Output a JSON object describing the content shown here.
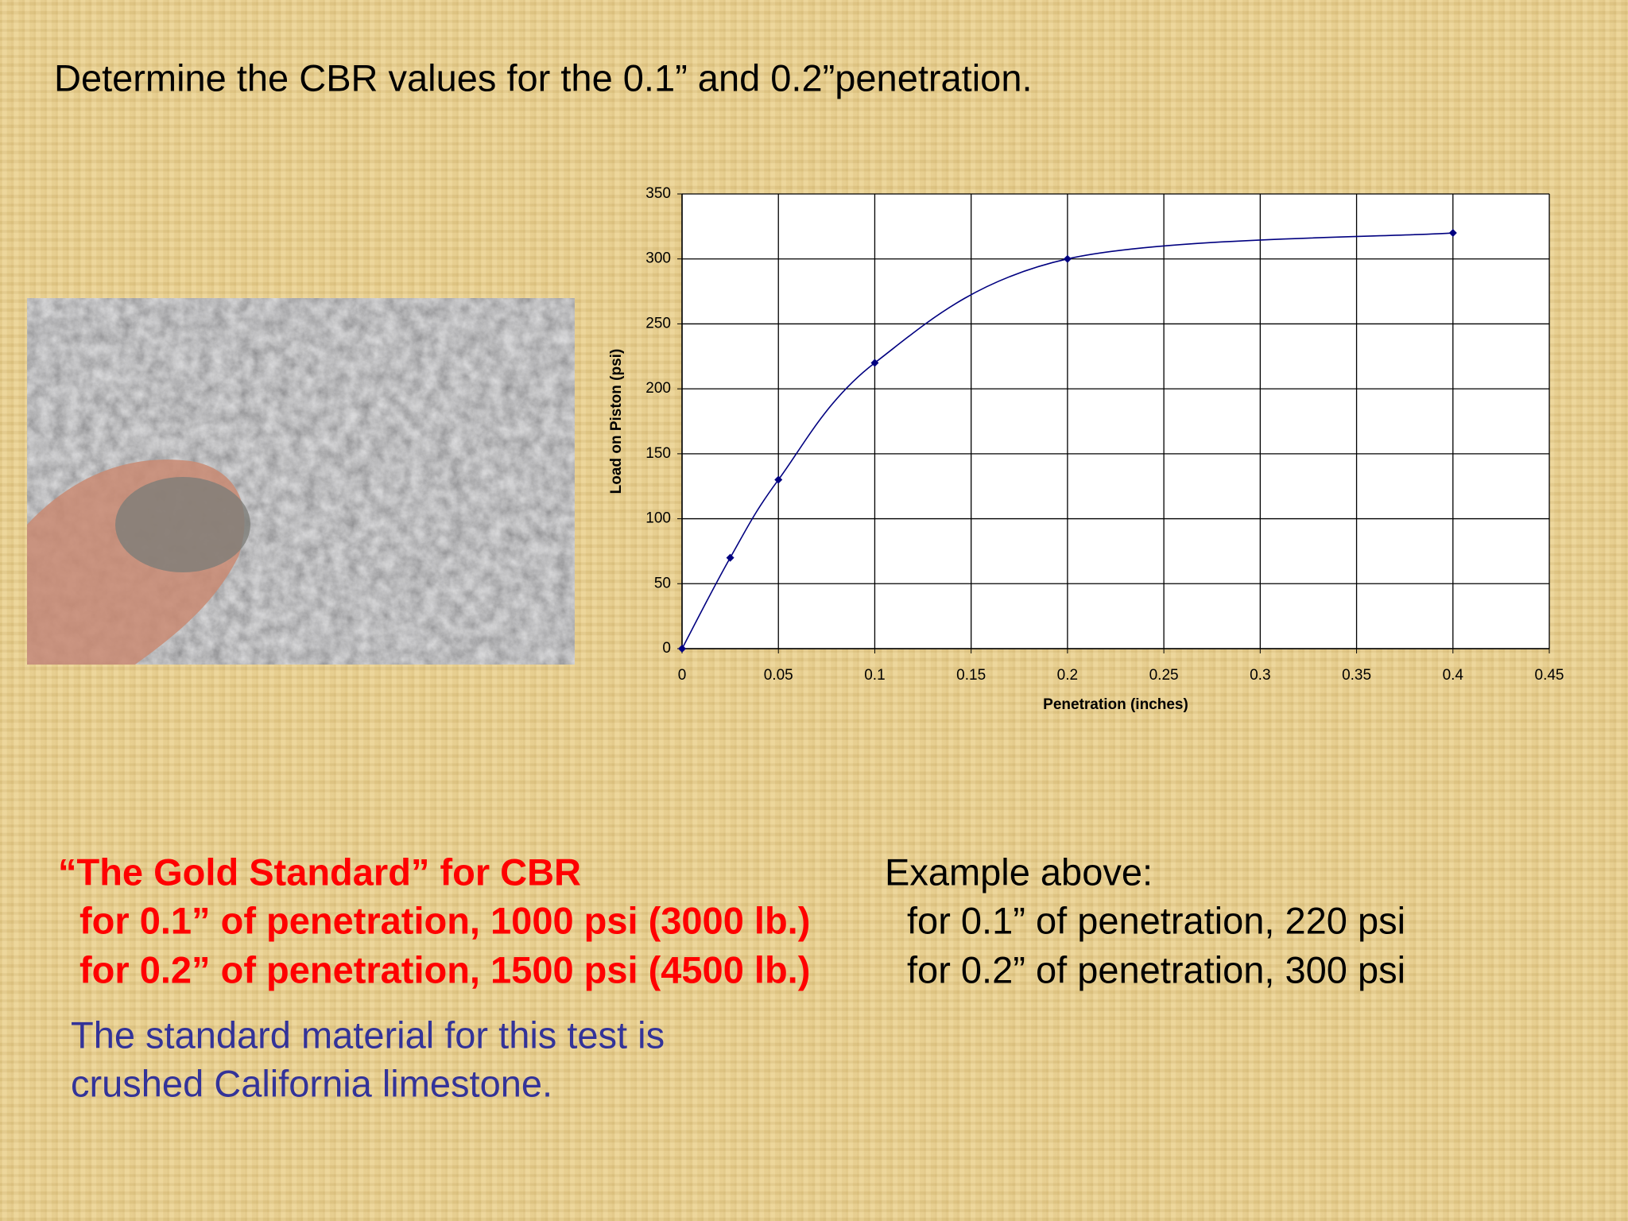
{
  "slide": {
    "title": "Determine the CBR values for the 0.1” and 0.2”penetration.",
    "gold": {
      "heading": "“The Gold Standard” for CBR",
      "lines": [
        "for 0.1” of penetration, 1000 psi (3000 lb.)",
        "for 0.2” of penetration, 1500 psi (4500 lb.)"
      ]
    },
    "example": {
      "heading": "Example above:",
      "lines": [
        "for 0.1” of penetration, 220 psi",
        "for 0.2” of penetration, 300 psi"
      ]
    },
    "note": [
      "The standard material for this test is",
      "crushed California limestone."
    ]
  },
  "chart_data": {
    "type": "line",
    "x_label": "Penetration (inches)",
    "y_label": "Load on Piston (psi)",
    "x": [
      0,
      0.025,
      0.05,
      0.1,
      0.2,
      0.4
    ],
    "series": [
      {
        "color": "#000080",
        "values": [
          0,
          70,
          130,
          220,
          300,
          320
        ]
      }
    ],
    "xlim": [
      0,
      0.45
    ],
    "ylim": [
      0,
      350
    ],
    "xticks": [
      0,
      0.05,
      0.1,
      0.15,
      0.2,
      0.25,
      0.3,
      0.35,
      0.4,
      0.45
    ],
    "yticks": [
      0,
      50,
      100,
      150,
      200,
      250,
      300,
      350
    ],
    "grid": true,
    "smooth": true,
    "markers": true
  }
}
